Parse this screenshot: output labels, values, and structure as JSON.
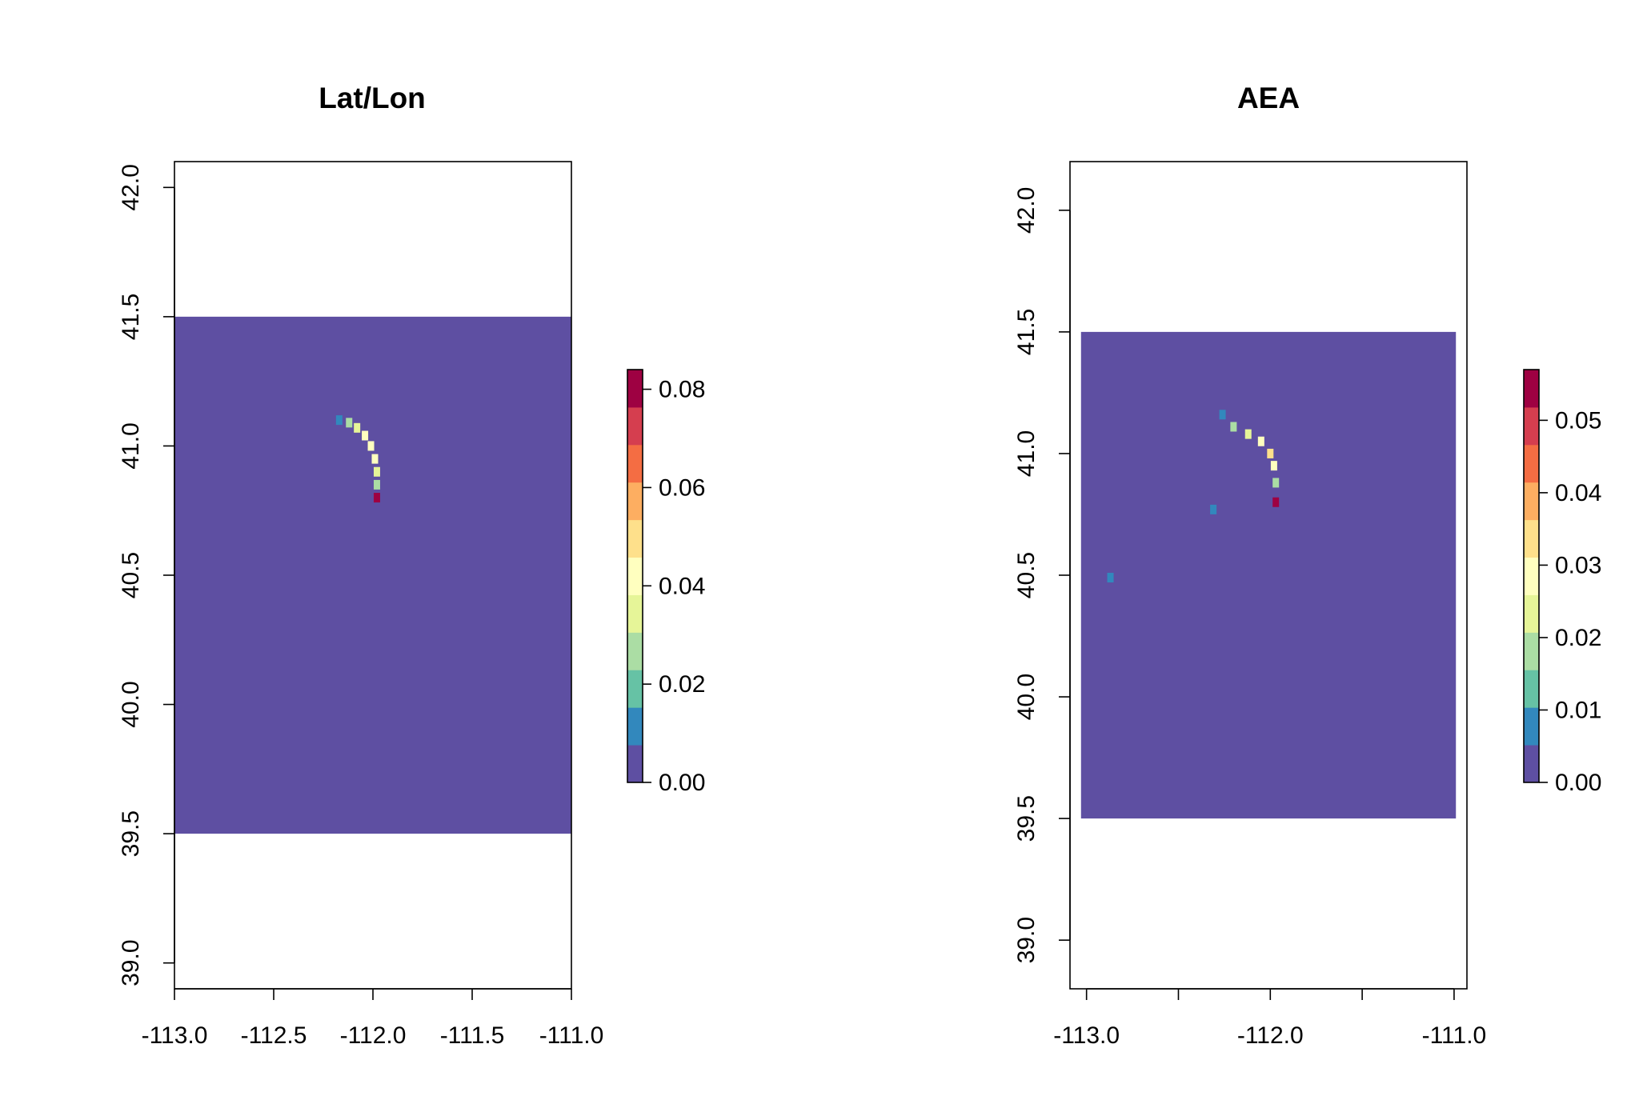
{
  "chart_data": [
    {
      "type": "heatmap",
      "title": "Lat/Lon",
      "xlabel": "",
      "ylabel": "",
      "xlim": [
        -113.0,
        -111.0
      ],
      "ylim": [
        38.9,
        42.1
      ],
      "x_ticks": [
        -113.0,
        -112.5,
        -112.0,
        -111.5,
        -111.0
      ],
      "x_tick_labels": [
        "-113.0",
        "-112.5",
        "-112.0",
        "-111.5",
        "-111.0"
      ],
      "y_ticks": [
        39.0,
        39.5,
        40.0,
        40.5,
        41.0,
        41.5,
        42.0
      ],
      "y_tick_labels": [
        "39.0",
        "39.5",
        "40.0",
        "40.5",
        "41.0",
        "41.5",
        "42.0"
      ],
      "raster_extent": {
        "xmin": -113.0,
        "xmax": -111.0,
        "ymin": 39.5,
        "ymax": 41.5
      },
      "background_value": 0.0,
      "hotspot": [
        {
          "x": -112.17,
          "y": 41.1,
          "value": 0.015
        },
        {
          "x": -112.12,
          "y": 41.09,
          "value": 0.025
        },
        {
          "x": -112.08,
          "y": 41.07,
          "value": 0.035
        },
        {
          "x": -112.04,
          "y": 41.04,
          "value": 0.04
        },
        {
          "x": -112.01,
          "y": 41.0,
          "value": 0.042
        },
        {
          "x": -111.99,
          "y": 40.95,
          "value": 0.04
        },
        {
          "x": -111.98,
          "y": 40.9,
          "value": 0.038
        },
        {
          "x": -111.98,
          "y": 40.85,
          "value": 0.03
        },
        {
          "x": -111.98,
          "y": 40.8,
          "value": 0.08
        }
      ],
      "legend": {
        "min": 0.0,
        "max": 0.084,
        "ticks": [
          0.0,
          0.02,
          0.04,
          0.06,
          0.08
        ],
        "tick_labels": [
          "0.00",
          "0.02",
          "0.04",
          "0.06",
          "0.08"
        ]
      }
    },
    {
      "type": "heatmap",
      "title": "AEA",
      "xlabel": "",
      "ylabel": "",
      "xlim": [
        -113.09,
        -110.93
      ],
      "ylim": [
        38.8,
        42.2
      ],
      "x_ticks": [
        -113.0,
        -112.5,
        -112.0,
        -111.5,
        -111.0
      ],
      "x_tick_labels": [
        "-113.0",
        "",
        "-112.0",
        "",
        "-111.0"
      ],
      "y_ticks": [
        39.0,
        39.5,
        40.0,
        40.5,
        41.0,
        41.5,
        42.0
      ],
      "y_tick_labels": [
        "39.0",
        "39.5",
        "40.0",
        "40.5",
        "41.0",
        "41.5",
        "42.0"
      ],
      "raster_extent": {
        "xmin": -113.03,
        "xmax": -110.99,
        "ymin": 39.5,
        "ymax": 41.5
      },
      "background_value": 0.0,
      "hotspot": [
        {
          "x": -112.26,
          "y": 41.16,
          "value": 0.01
        },
        {
          "x": -112.2,
          "y": 41.11,
          "value": 0.018
        },
        {
          "x": -112.12,
          "y": 41.08,
          "value": 0.025
        },
        {
          "x": -112.05,
          "y": 41.05,
          "value": 0.03
        },
        {
          "x": -112.0,
          "y": 41.0,
          "value": 0.032
        },
        {
          "x": -111.98,
          "y": 40.95,
          "value": 0.028
        },
        {
          "x": -111.97,
          "y": 40.88,
          "value": 0.02
        },
        {
          "x": -111.97,
          "y": 40.8,
          "value": 0.055
        },
        {
          "x": -112.87,
          "y": 40.49,
          "value": 0.01
        },
        {
          "x": -112.31,
          "y": 40.77,
          "value": 0.008
        }
      ],
      "legend": {
        "min": 0.0,
        "max": 0.057,
        "ticks": [
          0.0,
          0.01,
          0.02,
          0.03,
          0.04,
          0.05
        ],
        "tick_labels": [
          "0.00",
          "0.01",
          "0.02",
          "0.03",
          "0.04",
          "0.05"
        ]
      }
    }
  ],
  "palette": [
    "#5e4fa2",
    "#3288bd",
    "#66c2a5",
    "#abdda4",
    "#e6f598",
    "#ffffbf",
    "#fee08b",
    "#fdae61",
    "#f46d43",
    "#d53e4f",
    "#9e0142"
  ]
}
